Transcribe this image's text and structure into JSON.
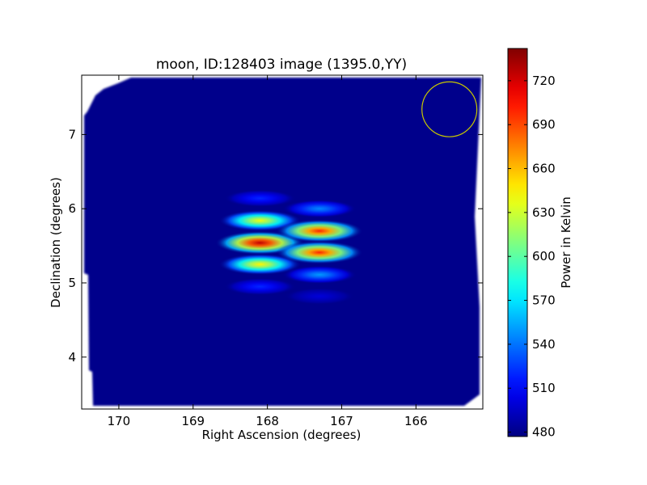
{
  "chart_data": {
    "type": "heatmap",
    "title": "moon, ID:128403 image (1395.0,YY)",
    "xlabel": "Right Ascension (degrees)",
    "ylabel": "Declination (degrees)",
    "xlim": [
      170.5,
      165.1
    ],
    "ylim": [
      3.3,
      7.8
    ],
    "x_ticks": [
      170,
      169,
      168,
      167,
      166
    ],
    "y_ticks": [
      4,
      5,
      6,
      7
    ],
    "x_tick_labels": [
      "170",
      "169",
      "168",
      "167",
      "166"
    ],
    "y_tick_labels": [
      "4",
      "5",
      "6",
      "7"
    ],
    "colormap": "jet",
    "background_value": 480,
    "colorbar": {
      "label": "Power in Kelvin",
      "range": [
        477,
        742
      ],
      "ticks": [
        480,
        510,
        540,
        570,
        600,
        630,
        660,
        690,
        720
      ],
      "tick_labels": [
        "480",
        "510",
        "540",
        "570",
        "600",
        "630",
        "660",
        "690",
        "720"
      ]
    },
    "blobs": [
      {
        "ra": 168.1,
        "dec": 6.14,
        "peak": 520
      },
      {
        "ra": 168.1,
        "dec": 5.84,
        "peak": 640
      },
      {
        "ra": 168.1,
        "dec": 5.54,
        "peak": 725
      },
      {
        "ra": 168.1,
        "dec": 5.25,
        "peak": 645
      },
      {
        "ra": 168.1,
        "dec": 4.95,
        "peak": 520
      },
      {
        "ra": 167.3,
        "dec": 6.0,
        "peak": 545
      },
      {
        "ra": 167.3,
        "dec": 5.7,
        "peak": 700
      },
      {
        "ra": 167.3,
        "dec": 5.41,
        "peak": 700
      },
      {
        "ra": 167.3,
        "dec": 5.11,
        "peak": 550
      },
      {
        "ra": 167.3,
        "dec": 4.82,
        "peak": 500
      }
    ],
    "beam_circle": {
      "ra": 165.55,
      "dec": 7.34,
      "radius_deg": 0.37,
      "color": "#c8c800"
    },
    "colors": {
      "background": "#00008f",
      "axes_frame": "#000000",
      "page": "#ffffff"
    }
  }
}
